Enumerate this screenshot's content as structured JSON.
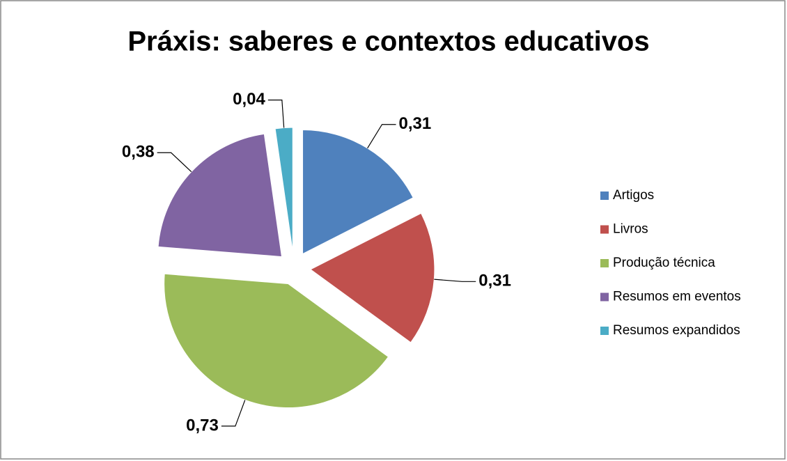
{
  "chart_data": {
    "type": "pie",
    "title": "Práxis: saberes e contextos educativos",
    "categories": [
      "Artigos",
      "Livros",
      "Produção técnica",
      "Resumos em eventos",
      "Resumos expandidos"
    ],
    "values": [
      0.31,
      0.31,
      0.73,
      0.38,
      0.04
    ],
    "value_labels": [
      "0,31",
      "0,31",
      "0,73",
      "0,38",
      "0,04"
    ],
    "colors": [
      "#4f81bd",
      "#c0504d",
      "#9bbb59",
      "#8064a2",
      "#4bacc6"
    ],
    "legend": "right"
  }
}
